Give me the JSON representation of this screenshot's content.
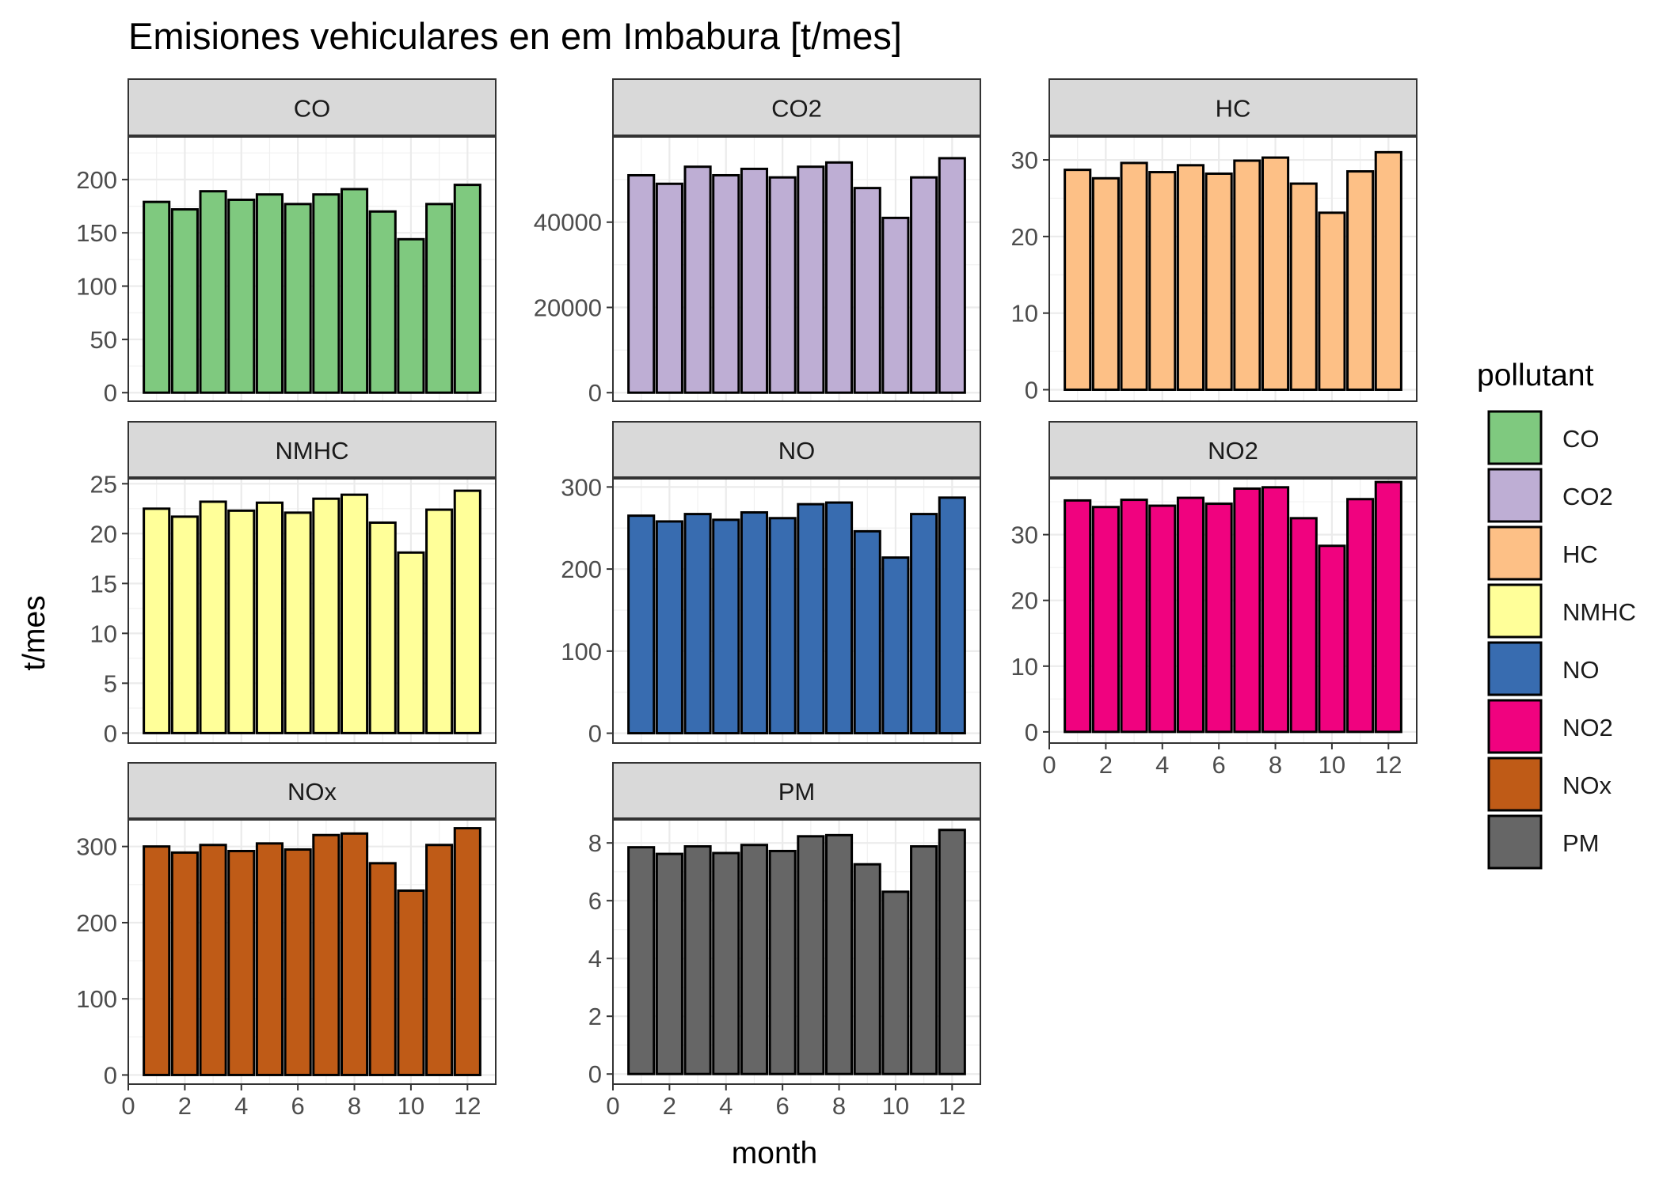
{
  "chart_data": {
    "type": "bar",
    "title": "Emisiones vehiculares en  em Imbabura [t/mes]",
    "xlabel": "month",
    "ylabel": "t/mes",
    "legend": {
      "title": "pollutant",
      "position": "right"
    },
    "grid": true,
    "facets": [
      {
        "name": "CO",
        "color": "#7FC97F",
        "ylim": [
          -8,
          240
        ],
        "yticks": [
          0,
          50,
          100,
          150,
          200
        ],
        "values": [
          179,
          172,
          189,
          181,
          186,
          177,
          186,
          191,
          170,
          144,
          177,
          195
        ]
      },
      {
        "name": "CO2",
        "color": "#BEAED4",
        "ylim": [
          -2000,
          60000
        ],
        "yticks": [
          0,
          20000,
          40000
        ],
        "values": [
          51000,
          49000,
          53000,
          51000,
          52500,
          50500,
          53000,
          54000,
          48000,
          41000,
          50500,
          55000
        ]
      },
      {
        "name": "HC",
        "color": "#FDC086",
        "ylim": [
          -1.5,
          33
        ],
        "yticks": [
          0,
          10,
          20,
          30
        ],
        "values": [
          28.7,
          27.6,
          29.6,
          28.4,
          29.3,
          28.2,
          29.9,
          30.3,
          26.9,
          23.1,
          28.5,
          31.0
        ]
      },
      {
        "name": "NMHC",
        "color": "#FFFF99",
        "ylim": [
          -1,
          25.5
        ],
        "yticks": [
          0,
          5,
          10,
          15,
          20,
          25
        ],
        "values": [
          22.5,
          21.7,
          23.2,
          22.3,
          23.1,
          22.1,
          23.5,
          23.9,
          21.1,
          18.1,
          22.4,
          24.3
        ]
      },
      {
        "name": "NO",
        "color": "#386CB0",
        "ylim": [
          -12,
          310
        ],
        "yticks": [
          0,
          100,
          200,
          300
        ],
        "values": [
          265,
          258,
          267,
          260,
          269,
          262,
          279,
          281,
          246,
          214,
          267,
          287
        ]
      },
      {
        "name": "NO2",
        "color": "#F0027F",
        "ylim": [
          -1.7,
          38.5
        ],
        "yticks": [
          0,
          10,
          20,
          30
        ],
        "values": [
          35.2,
          34.2,
          35.3,
          34.4,
          35.6,
          34.7,
          37.0,
          37.2,
          32.5,
          28.3,
          35.4,
          38.0
        ]
      },
      {
        "name": "NOx",
        "color": "#BF5B17",
        "ylim": [
          -12,
          335
        ],
        "yticks": [
          0,
          100,
          200,
          300
        ],
        "values": [
          300,
          292,
          302,
          294,
          304,
          296,
          315,
          317,
          278,
          242,
          302,
          324
        ]
      },
      {
        "name": "PM",
        "color": "#666666",
        "ylim": [
          -0.35,
          8.8
        ],
        "yticks": [
          0,
          2,
          4,
          6,
          8
        ],
        "values": [
          7.85,
          7.62,
          7.88,
          7.65,
          7.93,
          7.72,
          8.23,
          8.27,
          7.26,
          6.31,
          7.88,
          8.45
        ]
      }
    ],
    "x": [
      1,
      2,
      3,
      4,
      5,
      6,
      7,
      8,
      9,
      10,
      11,
      12
    ],
    "xlim": [
      0,
      13
    ],
    "xticks": [
      0,
      2,
      4,
      6,
      8,
      10,
      12
    ]
  }
}
